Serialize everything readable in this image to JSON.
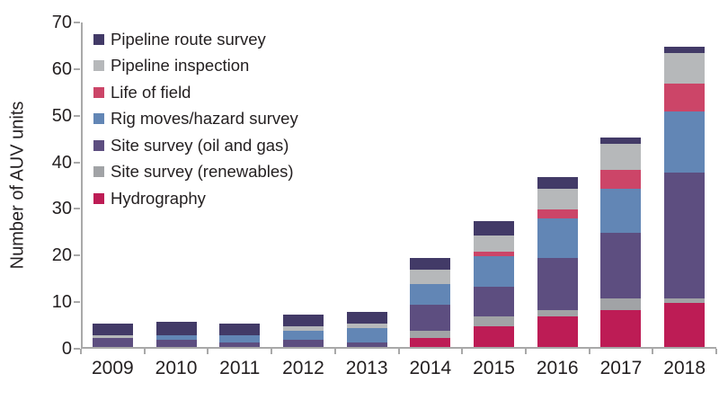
{
  "chart_data": {
    "type": "bar",
    "stacked": true,
    "title": "",
    "xlabel": "",
    "ylabel": "Number of AUV units",
    "ylim": [
      0,
      70
    ],
    "y_ticks": [
      0,
      10,
      20,
      30,
      40,
      50,
      60,
      70
    ],
    "grid": false,
    "legend_position": "top-left inside plot",
    "stack_note": "stacking order bottom-to-top is the reverse of the legend order",
    "categories": [
      "2009",
      "2010",
      "2011",
      "2012",
      "2013",
      "2014",
      "2015",
      "2016",
      "2017",
      "2018"
    ],
    "series": [
      {
        "name": "Pipeline route survey",
        "color": "#423a67",
        "values": [
          2.5,
          3,
          2.5,
          2.5,
          2.5,
          2.5,
          3,
          2.5,
          1.5,
          1.5
        ]
      },
      {
        "name": "Pipeline inspection",
        "color": "#b6b8ba",
        "values": [
          0.5,
          0,
          0,
          1,
          1,
          3,
          3.5,
          4.5,
          5.5,
          6.5
        ]
      },
      {
        "name": "Life of field",
        "color": "#cc4568",
        "values": [
          0,
          0,
          0,
          0,
          0,
          0,
          1,
          2,
          4,
          6
        ]
      },
      {
        "name": "Rig moves/hazard survey",
        "color": "#6286b5",
        "values": [
          0,
          1,
          1.5,
          2,
          3,
          4.5,
          6.5,
          8.5,
          9.5,
          13
        ]
      },
      {
        "name": "Site survey (oil and gas)",
        "color": "#5d4e80",
        "values": [
          2,
          1.5,
          1,
          1.5,
          1,
          5.5,
          6.5,
          11,
          14,
          27
        ]
      },
      {
        "name": "Site survey (renewables)",
        "color": "#a1a3a6",
        "values": [
          0,
          0,
          0,
          0,
          0,
          1.5,
          2,
          1.5,
          2.5,
          1
        ]
      },
      {
        "name": "Hydrography",
        "color": "#bd1c55",
        "values": [
          0,
          0,
          0,
          0,
          0,
          2,
          4.5,
          6.5,
          8,
          9.5
        ]
      }
    ],
    "totals": [
      5,
      5.5,
      5,
      7,
      7.5,
      19,
      27,
      36.5,
      45,
      64.5
    ]
  },
  "colors": {
    "background": "#ffffff",
    "axis": "#a9a9a9",
    "text": "#231f20"
  }
}
